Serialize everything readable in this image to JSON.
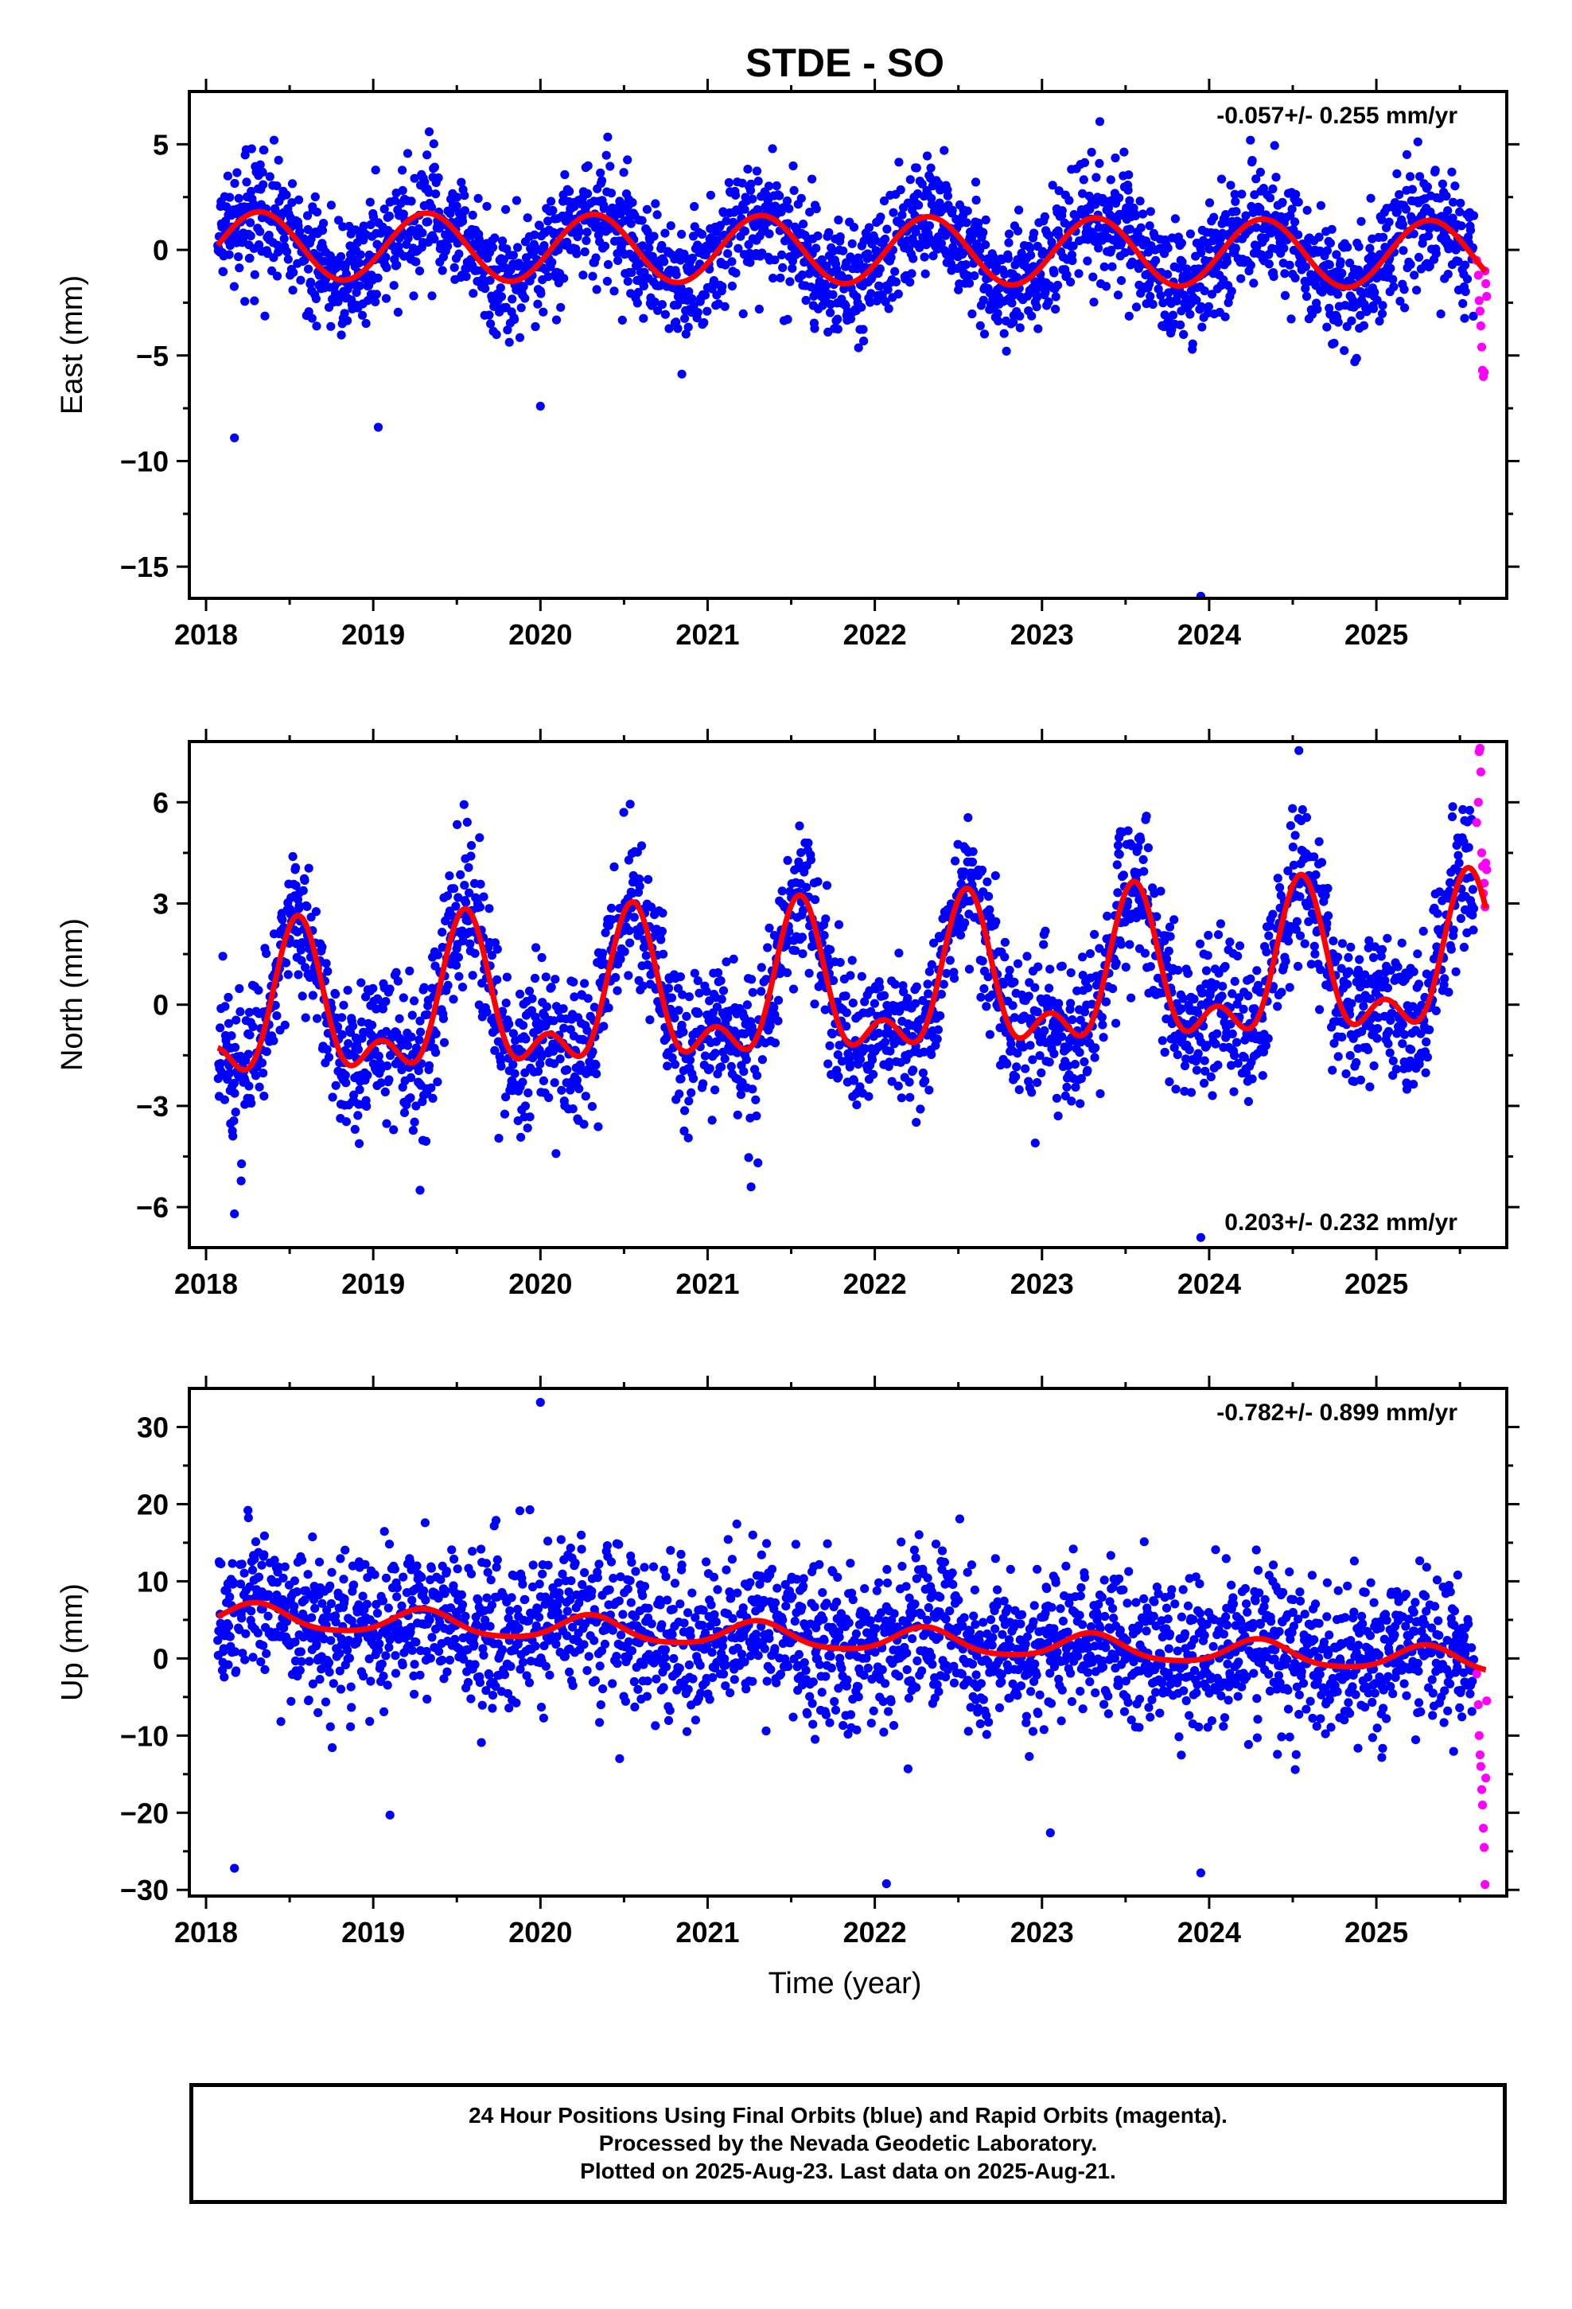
{
  "title": "STDE - SO",
  "xlabel": "Time (year)",
  "colors": {
    "final": "#0000ff",
    "rapid": "#ff00ff",
    "model": "#ff0000",
    "axis": "#000000"
  },
  "footer": [
    "24 Hour Positions Using Final Orbits (blue) and Rapid Orbits (magenta).",
    "Processed by the Nevada Geodetic Laboratory.",
    "Plotted on 2025-Aug-23. Last data on 2025-Aug-21."
  ],
  "chart_data": [
    {
      "type": "scatter",
      "ylabel": "East (mm)",
      "rate_label": "-0.057+/- 0.255 mm/yr",
      "rate_position": "top-right",
      "xlim": [
        2017.9,
        2025.78
      ],
      "ylim": [
        -16.5,
        7.5
      ],
      "xticks": [
        2018,
        2019,
        2020,
        2021,
        2022,
        2023,
        2024,
        2025
      ],
      "yticks": [
        5,
        0,
        -5,
        -10,
        -15
      ],
      "yticks_minor": [
        2.5,
        -2.5,
        -7.5,
        -12.5
      ],
      "series": [
        {
          "role": "final",
          "values_description": "daily positions 2018.07-2025.58, scatter about the model",
          "noise_mm": 1.4
        },
        {
          "role": "rapid",
          "x": [
            2025.6,
            2025.61,
            2025.615,
            2025.62,
            2025.625,
            2025.63,
            2025.635,
            2025.64,
            2025.645,
            2025.65,
            2025.655,
            2025.66
          ],
          "y": [
            -0.5,
            -1.2,
            -2.4,
            -2.9,
            -3.6,
            -4.6,
            -5.7,
            -6.0,
            -5.8,
            -1.0,
            -1.6,
            -2.2
          ]
        },
        {
          "role": "model",
          "trend": -0.057,
          "intercept": 0.0,
          "annual_amp": 1.6,
          "annual_peak": 0.32,
          "semiannual_amp": 0.0,
          "semiannual_peak": 0.0,
          "steps": []
        }
      ],
      "outliers": {
        "x": [
          2018.17,
          2019.03,
          2020.0,
          2023.95
        ],
        "y": [
          -8.9,
          -8.4,
          -7.4,
          -16.4
        ]
      }
    },
    {
      "type": "scatter",
      "ylabel": "North (mm)",
      "rate_label": "0.203+/- 0.232 mm/yr",
      "rate_position": "bottom-right",
      "xlim": [
        2017.9,
        2025.78
      ],
      "ylim": [
        -7.2,
        7.8
      ],
      "xticks": [
        2018,
        2019,
        2020,
        2021,
        2022,
        2023,
        2024,
        2025
      ],
      "yticks": [
        6,
        3,
        0,
        -3,
        -6
      ],
      "yticks_minor": [
        4.5,
        1.5,
        -1.5,
        -4.5
      ],
      "series": [
        {
          "role": "final",
          "values_description": "daily positions 2018.07-2025.58, scatter about the model",
          "noise_mm": 1.1
        },
        {
          "role": "rapid",
          "x": [
            2025.6,
            2025.61,
            2025.615,
            2025.62,
            2025.625,
            2025.63,
            2025.635,
            2025.64,
            2025.645,
            2025.65,
            2025.655,
            2025.66
          ],
          "y": [
            5.4,
            6.0,
            7.5,
            7.6,
            6.9,
            4.5,
            4.1,
            3.3,
            3.6,
            2.9,
            4.2,
            4.0
          ]
        },
        {
          "role": "model",
          "trend": 0.203,
          "intercept": 0.3,
          "annual_amp": 1.9,
          "annual_peak": 0.55,
          "semiannual_amp": 1.1,
          "semiannual_peak": 0.55,
          "steps": []
        }
      ],
      "outliers": {
        "x": [
          2018.17,
          2019.28,
          2021.26,
          2023.95
        ],
        "y": [
          -6.2,
          -5.5,
          -5.4,
          -6.9
        ]
      }
    },
    {
      "type": "scatter",
      "ylabel": "Up (mm)",
      "rate_label": "-0.782+/- 0.899 mm/yr",
      "rate_position": "top-right",
      "xlim": [
        2017.9,
        2025.78
      ],
      "ylim": [
        -30.8,
        35.0
      ],
      "xticks": [
        2018,
        2019,
        2020,
        2021,
        2022,
        2023,
        2024,
        2025
      ],
      "yticks": [
        30,
        20,
        10,
        0,
        -10,
        -20,
        -30
      ],
      "yticks_minor": [
        25,
        15,
        5,
        -5,
        -15,
        -25
      ],
      "series": [
        {
          "role": "final",
          "values_description": "daily positions 2018.07-2025.58, scatter about the model",
          "noise_mm": 5.0
        },
        {
          "role": "rapid",
          "x": [
            2025.6,
            2025.61,
            2025.615,
            2025.62,
            2025.625,
            2025.63,
            2025.635,
            2025.64,
            2025.645,
            2025.65,
            2025.655,
            2025.66
          ],
          "y": [
            -2.0,
            -6.0,
            -10.0,
            -12.5,
            -14.0,
            -17.0,
            -19.0,
            -22.0,
            -24.5,
            -29.3,
            -15.5,
            -5.5
          ]
        },
        {
          "role": "model",
          "trend": -0.782,
          "intercept": 2.6,
          "annual_amp": 1.6,
          "annual_peak": 0.3,
          "semiannual_amp": 0.3,
          "semiannual_peak": 0.3,
          "steps": []
        }
      ],
      "outliers": {
        "x": [
          2018.17,
          2019.1,
          2020.0,
          2022.07,
          2023.05,
          2023.95
        ],
        "y": [
          -27.2,
          -20.3,
          33.2,
          -29.2,
          -22.6,
          -27.8
        ]
      }
    }
  ]
}
